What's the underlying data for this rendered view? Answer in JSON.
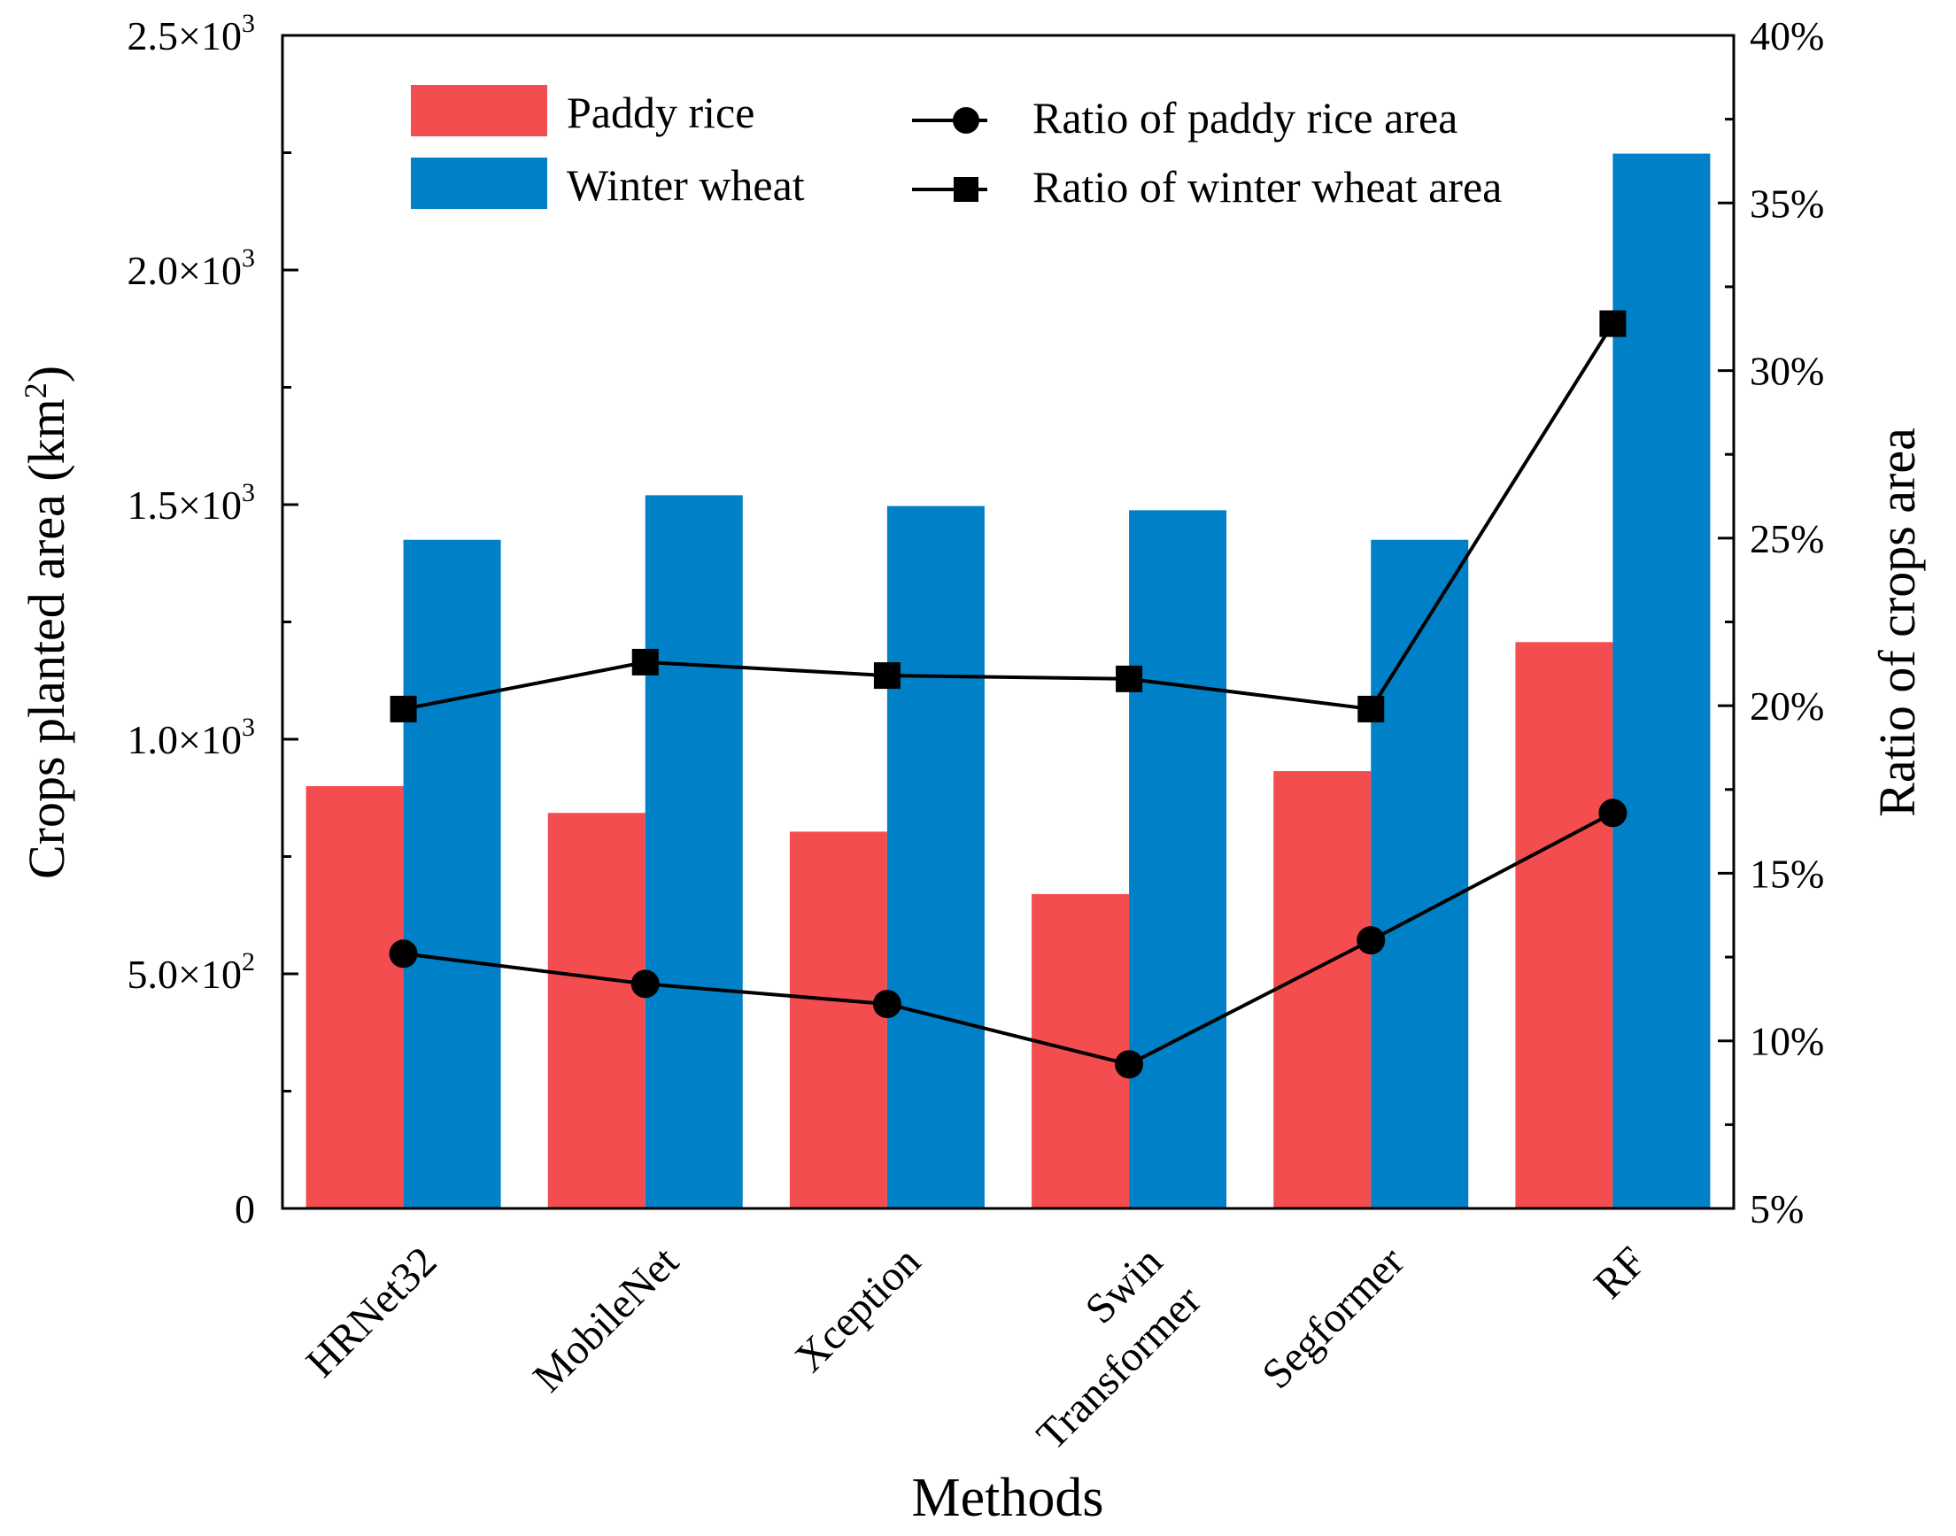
{
  "chart_data": {
    "type": "bar",
    "categories": [
      "HRNet32",
      "MobileNet",
      "Xception",
      "Swin Transformer",
      "Segformer",
      "RF"
    ],
    "category_labels": [
      [
        "HRNet32"
      ],
      [
        "MobileNet"
      ],
      [
        "Xception"
      ],
      [
        "Swin",
        "Transformer"
      ],
      [
        "Segformer"
      ],
      [
        "RF"
      ]
    ],
    "series": [
      {
        "name": "Paddy rice",
        "kind": "bar",
        "axis": "left",
        "color": "#f44d4f",
        "values": [
          900,
          843,
          803,
          670,
          932,
          1207
        ]
      },
      {
        "name": "Winter wheat",
        "kind": "bar",
        "axis": "left",
        "color": "#0080c6",
        "values": [
          1425,
          1520,
          1497,
          1488,
          1425,
          2248
        ]
      },
      {
        "name": "Ratio of paddy rice area",
        "kind": "line",
        "axis": "right",
        "marker": "circle",
        "color": "#000000",
        "values": [
          12.6,
          11.7,
          11.1,
          9.3,
          13.0,
          16.8
        ]
      },
      {
        "name": "Ratio of winter wheat area",
        "kind": "line",
        "axis": "right",
        "marker": "square",
        "color": "#000000",
        "values": [
          19.9,
          21.3,
          20.9,
          20.8,
          19.9,
          31.4
        ]
      }
    ],
    "xlabel": "Methods",
    "ylabel": "Crops planted area (km²)",
    "ylabel_main": "Crops planted area (km",
    "ylabel_sup": "2",
    "ylabel_end": ")",
    "y2label": "Ratio of crops area",
    "ylim": [
      0,
      2500
    ],
    "y2lim": [
      5,
      40
    ],
    "yticks": [
      {
        "value": 0,
        "mant": "0",
        "exp": ""
      },
      {
        "value": 500,
        "mant": "5.0×10",
        "exp": "2"
      },
      {
        "value": 1000,
        "mant": "1.0×10",
        "exp": "3"
      },
      {
        "value": 1500,
        "mant": "1.5×10",
        "exp": "3"
      },
      {
        "value": 2000,
        "mant": "2.0×10",
        "exp": "3"
      },
      {
        "value": 2500,
        "mant": "2.5×10",
        "exp": "3"
      }
    ],
    "y2ticks": [
      {
        "value": 5,
        "label": "5%"
      },
      {
        "value": 10,
        "label": "10%"
      },
      {
        "value": 15,
        "label": "15%"
      },
      {
        "value": 20,
        "label": "20%"
      },
      {
        "value": 25,
        "label": "25%"
      },
      {
        "value": 30,
        "label": "30%"
      },
      {
        "value": 35,
        "label": "35%"
      },
      {
        "value": 40,
        "label": "40%"
      }
    ],
    "legend_position": "top-left",
    "grid": false
  }
}
